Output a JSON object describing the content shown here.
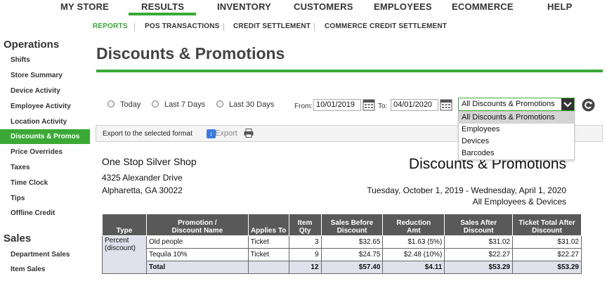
{
  "topnav": {
    "items": [
      "MY STORE",
      "RESULTS",
      "INVENTORY",
      "CUSTOMERS",
      "EMPLOYEES",
      "ECOMMERCE",
      "HELP"
    ],
    "active": "RESULTS"
  },
  "subnav": {
    "items": [
      "REPORTS",
      "POS TRANSACTIONS",
      "CREDIT SETTLEMENT",
      "COMMERCE CREDIT SETTLEMENT"
    ],
    "active": "REPORTS"
  },
  "sidebar": {
    "operations_heading": "Operations",
    "operations_items": [
      "Shifts",
      "Store Summary",
      "Device Activity",
      "Employee Activity",
      "Location Activity",
      "Discounts & Promos",
      "Price Overrides",
      "Taxes",
      "Time Clock",
      "Tips",
      "Offline Credit"
    ],
    "active": "Discounts & Promos",
    "sales_heading": "Sales",
    "sales_items": [
      "Department Sales",
      "Item Sales"
    ]
  },
  "page": {
    "title": "Discounts & Promotions"
  },
  "filters": {
    "radios": [
      "Today",
      "Last 7 Days",
      "Last 30 Days"
    ],
    "from_label": "From:",
    "from_value": "10/01/2019",
    "to_label": "To:",
    "to_value": "04/01/2020",
    "select_value": "All Discounts & Promotions",
    "options": [
      "All Discounts & Promotions",
      "Employees",
      "Devices",
      "Barcodes"
    ],
    "highlighted_option": "All Discounts & Promotions"
  },
  "export": {
    "select_value": "Export to the selected format",
    "button_label": "Export"
  },
  "report": {
    "store_name": "One Stop Silver Shop",
    "address_line1": "4325 Alexander Drive",
    "address_line2": "Alpharetta, GA 30022",
    "title": "Discounts & Promotions",
    "date_range": "Tuesday, October 1, 2019 - Wednesday, April 1, 2020",
    "scope": "All Employees & Devices"
  },
  "table": {
    "headers": {
      "type": "Type",
      "promotion_line1": "Promotion /",
      "promotion_line2": "Discount Name",
      "applies_to": "Applies To",
      "qty_line1": "Item",
      "qty_line2": "Qty",
      "before_line1": "Sales Before",
      "before_line2": "Discount",
      "reduction_line1": "Reduction",
      "reduction_line2": "Amt",
      "after_line1": "Sales After",
      "after_line2": "Discount",
      "ticket_line1": "Ticket Total After",
      "ticket_line2": "Discount"
    },
    "type_line1": "Percent",
    "type_line2": "(discount)",
    "rows": [
      {
        "name": "Old people",
        "applies_to": "Ticket",
        "qty": "3",
        "before": "$32.65",
        "reduction": "$1.63 (5%)",
        "after": "$31.02",
        "ticket_total": "$31.02"
      },
      {
        "name": "Tequila 10%",
        "applies_to": "Ticket",
        "qty": "9",
        "before": "$24.75",
        "reduction": "$2.48 (10%)",
        "after": "$22.27",
        "ticket_total": "$22.27"
      }
    ],
    "total": {
      "label": "Total",
      "qty": "12",
      "before": "$57.40",
      "reduction": "$4.11",
      "after": "$53.29",
      "ticket_total": "$53.29"
    }
  },
  "colors": {
    "accent": "#3aa935",
    "header_bg": "#595959",
    "type_bg": "#dfe2ec"
  }
}
